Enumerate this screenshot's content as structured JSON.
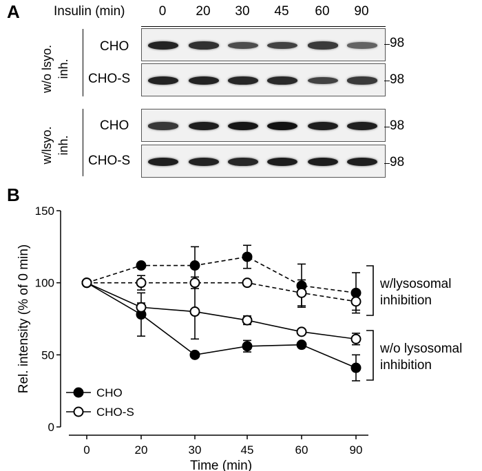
{
  "panel_a": {
    "letter": "A",
    "header_label": "Insulin (min)",
    "time_points": [
      "0",
      "20",
      "30",
      "45",
      "60",
      "90"
    ],
    "group_top_label": [
      "w/o lsyo.",
      "inh."
    ],
    "group_bottom_label": [
      "w/lsyo.",
      "inh."
    ],
    "rows": [
      {
        "label": "CHO",
        "mw": "98",
        "intensity": [
          0.85,
          0.75,
          0.55,
          0.62,
          0.68,
          0.38
        ]
      },
      {
        "label": "CHO-S",
        "mw": "98",
        "intensity": [
          0.85,
          0.85,
          0.82,
          0.8,
          0.62,
          0.68
        ]
      },
      {
        "label": "CHO",
        "mw": "98",
        "intensity": [
          0.7,
          0.9,
          0.95,
          0.98,
          0.9,
          0.88
        ]
      },
      {
        "label": "CHO-S",
        "mw": "98",
        "intensity": [
          0.88,
          0.85,
          0.82,
          0.9,
          0.9,
          0.88
        ]
      }
    ]
  },
  "panel_b": {
    "letter": "B",
    "bracket_upper_label": [
      "w/lysosomal",
      "inhibition"
    ],
    "bracket_lower_label": [
      "w/o lysosomal",
      "inhibition"
    ],
    "chart_data": {
      "type": "line",
      "title": "",
      "xlabel": "Time (min)",
      "ylabel": "Rel. intensity (% of 0 min)",
      "x": [
        "0",
        "20",
        "30",
        "45",
        "60",
        "90"
      ],
      "ylim": [
        0,
        150
      ],
      "yticks": [
        0,
        50,
        100,
        150
      ],
      "legend_position": "bottom-left",
      "legend": [
        {
          "name": "CHO",
          "marker": "filled"
        },
        {
          "name": "CHO-S",
          "marker": "open"
        }
      ],
      "series": [
        {
          "group": "w/lysosomal inhibition",
          "marker": "filled",
          "dash": true,
          "values": [
            100,
            112,
            112,
            118,
            98,
            93
          ],
          "errors": [
            0,
            0,
            13,
            8,
            15,
            14
          ]
        },
        {
          "group": "w/lysosomal inhibition",
          "marker": "open",
          "dash": true,
          "values": [
            100,
            100,
            100,
            100,
            93,
            87
          ],
          "errors": [
            0,
            5,
            4,
            0,
            9,
            6
          ]
        },
        {
          "group": "w/o lysosomal inhibition",
          "marker": "filled",
          "dash": false,
          "values": [
            100,
            78,
            50,
            56,
            57,
            41
          ],
          "errors": [
            0,
            15,
            0,
            4,
            0,
            9
          ]
        },
        {
          "group": "w/o lysosomal inhibition",
          "marker": "open",
          "dash": false,
          "values": [
            100,
            83,
            80,
            74,
            66,
            61
          ],
          "errors": [
            0,
            3,
            19,
            3,
            0,
            4
          ]
        }
      ]
    }
  }
}
